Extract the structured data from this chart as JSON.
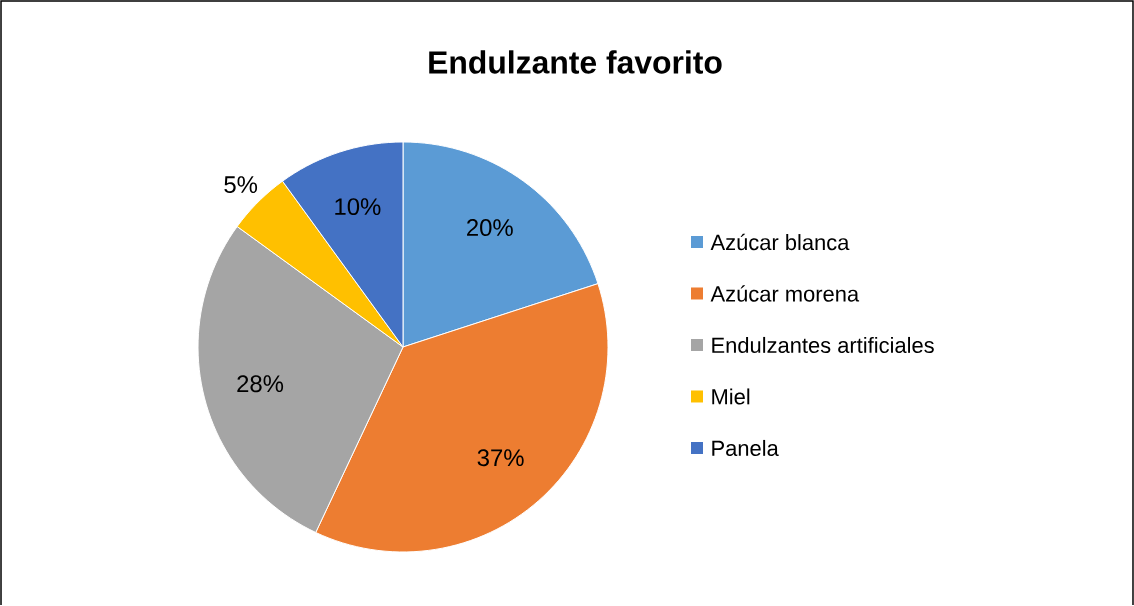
{
  "chart_data": {
    "type": "pie",
    "title": "Endulzante favorito",
    "categories": [
      "Azúcar blanca",
      "Azúcar morena",
      "Endulzantes artificiales",
      "Miel",
      "Panela"
    ],
    "values": [
      20,
      37,
      28,
      5,
      10
    ],
    "colors": [
      "#5b9bd5",
      "#ed7d31",
      "#a5a5a5",
      "#ffc000",
      "#4472c4"
    ],
    "value_labels": [
      "20%",
      "37%",
      "28%",
      "5%",
      "10%"
    ],
    "legend": "right"
  }
}
